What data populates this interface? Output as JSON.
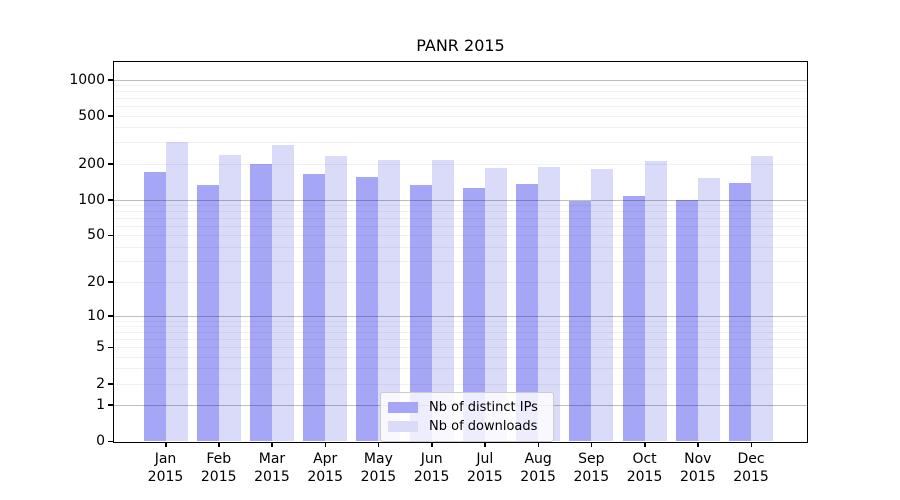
{
  "chart_data": {
    "type": "bar",
    "title": "PANR 2015",
    "categories": [
      "Jan",
      "Feb",
      "Mar",
      "Apr",
      "May",
      "Jun",
      "Jul",
      "Aug",
      "Sep",
      "Oct",
      "Nov",
      "Dec"
    ],
    "x_year": "2015",
    "series": [
      {
        "name": "Nb of distinct IPs",
        "color": "#a6a6f7",
        "values": [
          170,
          133,
          200,
          165,
          155,
          133,
          125,
          135,
          97,
          108,
          100,
          138
        ]
      },
      {
        "name": "Nb of downloads",
        "color": "#dadaf9",
        "values": [
          305,
          235,
          285,
          230,
          215,
          215,
          182,
          186,
          180,
          210,
          152,
          230
        ]
      }
    ],
    "yscale": "log1p",
    "y_ticks": [
      0,
      1,
      2,
      5,
      10,
      20,
      50,
      100,
      200,
      500,
      1000
    ],
    "ylim": [
      0,
      1400
    ],
    "grid": true,
    "legend_position": "lower center"
  },
  "colors": {
    "major_gridline": "#bfbfbf",
    "minor_gridline": "#f0f0f0",
    "axis": "#000000",
    "background": "#ffffff"
  }
}
